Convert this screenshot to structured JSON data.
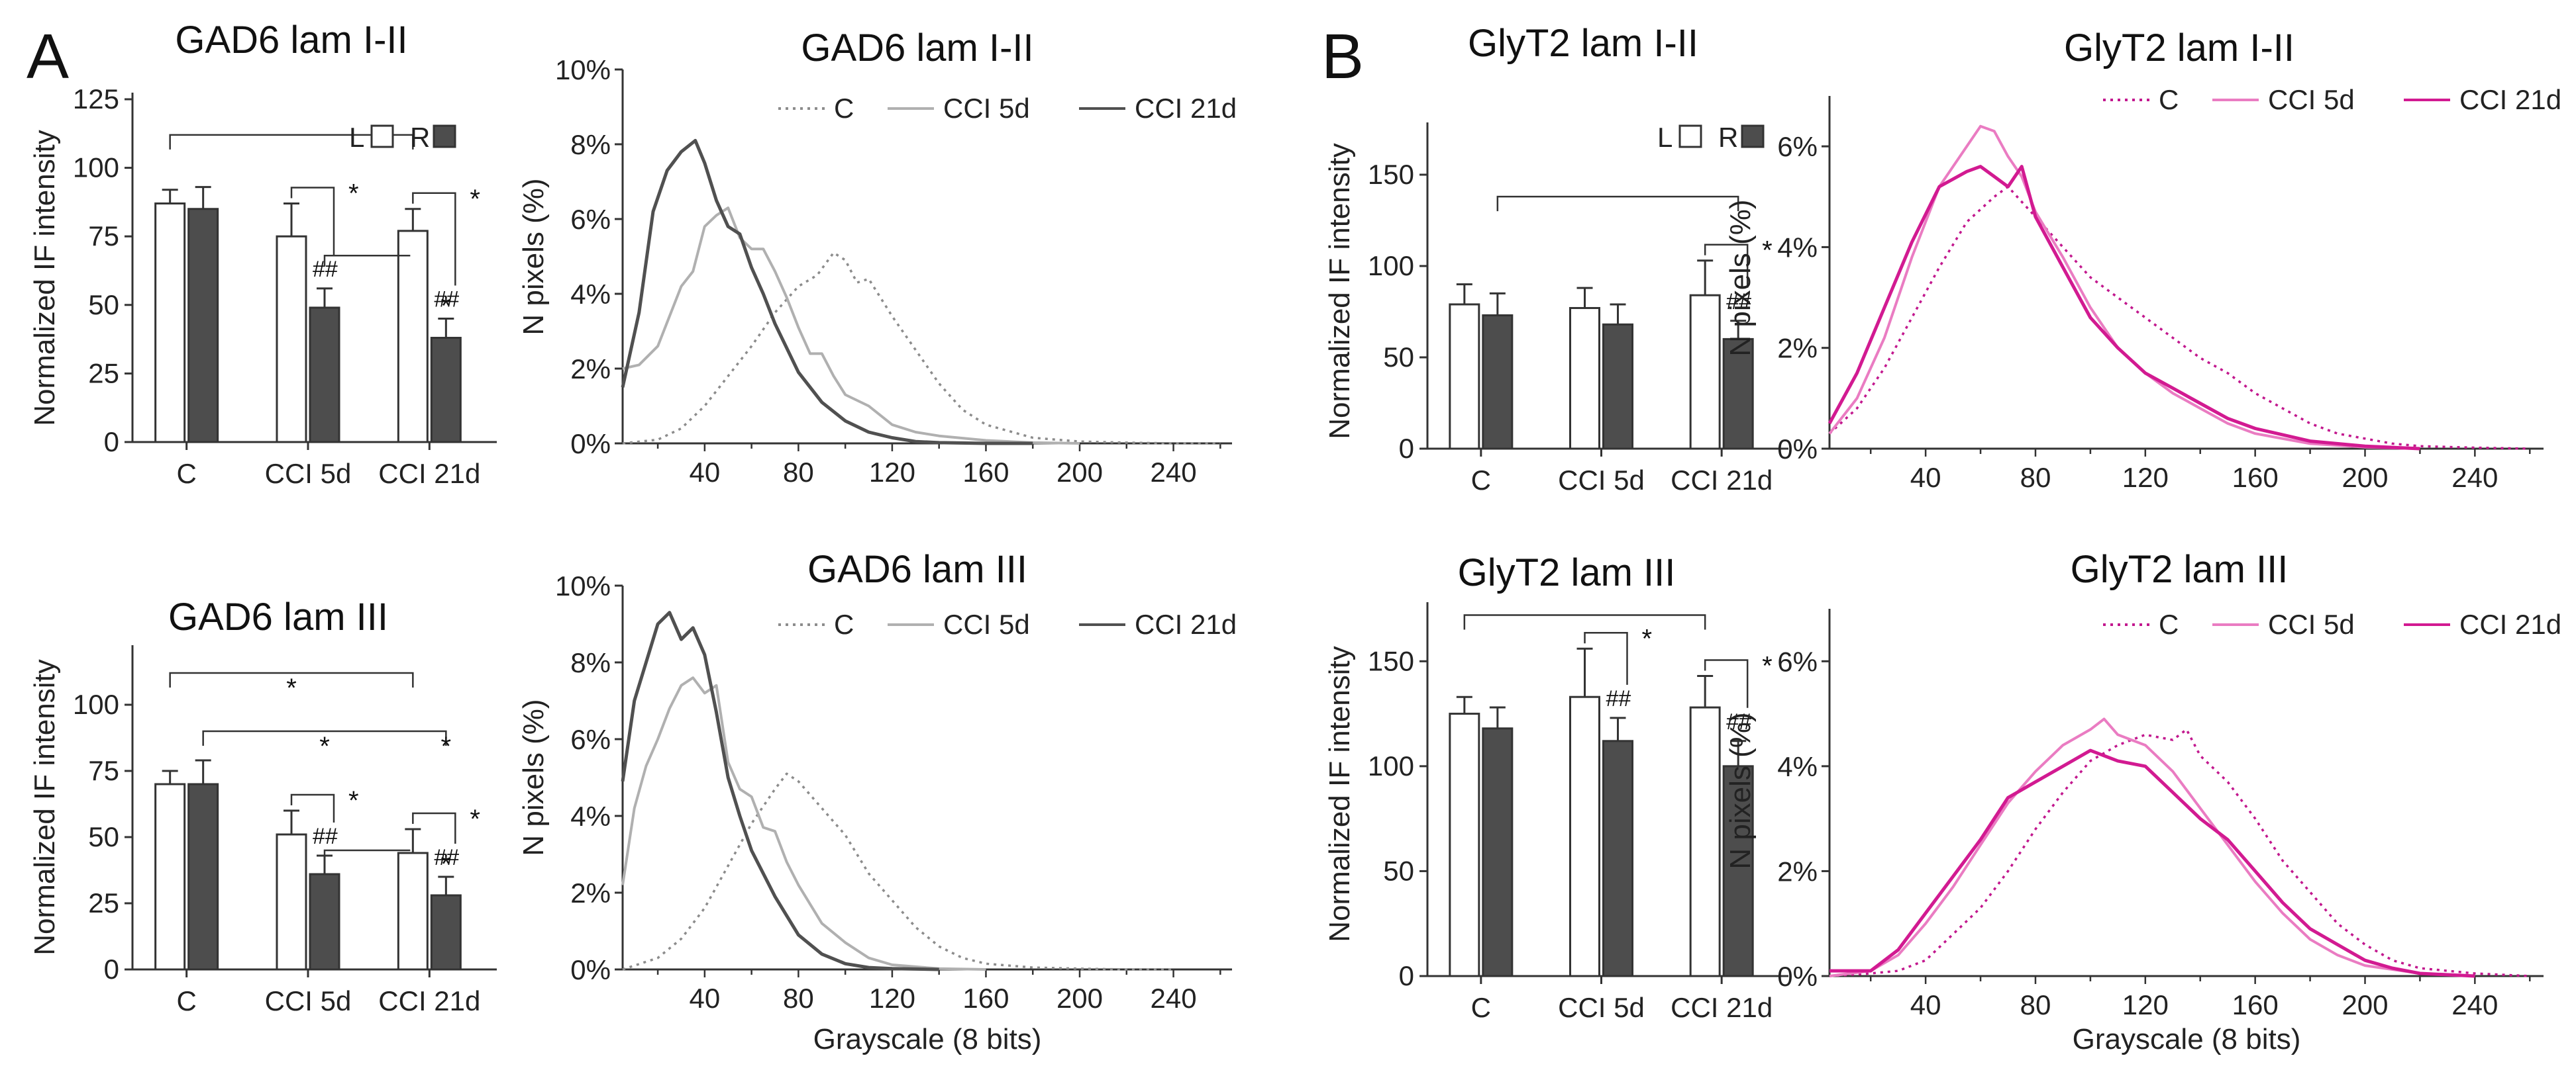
{
  "panel_labels": [
    "A",
    "B"
  ],
  "colors": {
    "bar_left": "#ffffff",
    "bar_right": "#4d4d4d",
    "gad_c": "#8c8c8c",
    "gad_5d": "#b0b0b0",
    "gad_21d": "#505050",
    "gly_c": "#c2188e",
    "gly_5d": "#ea7cc2",
    "gly_21d": "#d21a91"
  },
  "chart_data": [
    {
      "id": "bar_gad_12",
      "type": "bar",
      "title": "GAD6 lam I-II",
      "ylabel": "Normalized IF intensity",
      "categories": [
        "C",
        "CCI 5d",
        "CCI 21d"
      ],
      "series": [
        {
          "name": "L",
          "values": [
            87,
            75,
            77
          ],
          "errors": [
            5,
            12,
            8
          ]
        },
        {
          "name": "R",
          "values": [
            85,
            49,
            38
          ],
          "errors": [
            8,
            7,
            7
          ]
        }
      ],
      "ylim": [
        0,
        125
      ],
      "yticks": [
        0,
        25,
        50,
        75,
        100,
        125
      ],
      "legend": [
        "L",
        "R"
      ],
      "sig": [
        {
          "type": "bracket",
          "from": "C",
          "to": "CCI 21d",
          "level": 112,
          "label": ""
        },
        {
          "type": "pair",
          "cat": "CCI 5d",
          "label": "*",
          "hash": "##"
        },
        {
          "type": "pair",
          "cat": "CCI 21d",
          "label": "*",
          "hash": "##"
        },
        {
          "type": "r_bracket",
          "from": "CCI 5d",
          "to": "CCI 21d",
          "level": 68,
          "label": ""
        },
        {
          "type": "r_star",
          "cat": "CCI 21d",
          "label": "*"
        }
      ]
    },
    {
      "id": "bar_gad_3",
      "type": "bar",
      "title": "GAD6 lam III",
      "ylabel": "Normalized IF intensity",
      "categories": [
        "C",
        "CCI 5d",
        "CCI 21d"
      ],
      "series": [
        {
          "name": "L",
          "values": [
            70,
            51,
            44
          ],
          "errors": [
            5,
            9,
            9
          ]
        },
        {
          "name": "R",
          "values": [
            70,
            36,
            28
          ],
          "errors": [
            9,
            7,
            7
          ]
        }
      ],
      "ylim": [
        0,
        120
      ],
      "yticks": [
        0,
        25,
        50,
        75,
        100
      ],
      "sig": [
        {
          "type": "bracket",
          "from": "C",
          "to": "CCI 21d",
          "level": 112,
          "side": "L",
          "label": "*"
        },
        {
          "type": "bracket",
          "from": "C",
          "to": "CCI 21d",
          "level": 90,
          "side": "R",
          "label": "*",
          "label2": "*"
        },
        {
          "type": "pair",
          "cat": "CCI 5d",
          "label": "*",
          "hash": "##"
        },
        {
          "type": "pair",
          "cat": "CCI 21d",
          "label": "*",
          "hash": "##"
        },
        {
          "type": "r_bracket",
          "from": "CCI 5d",
          "to": "CCI 21d",
          "level": 45,
          "label": ""
        },
        {
          "type": "r_star",
          "cat": "CCI 21d",
          "label": "*"
        }
      ]
    },
    {
      "id": "bar_gly_12",
      "type": "bar",
      "title": "GlyT2 lam I-II",
      "ylabel": "Normalized IF intensity",
      "categories": [
        "C",
        "CCI 5d",
        "CCI 21d"
      ],
      "series": [
        {
          "name": "L",
          "values": [
            79,
            77,
            84
          ],
          "errors": [
            11,
            11,
            19
          ]
        },
        {
          "name": "R",
          "values": [
            73,
            68,
            60
          ],
          "errors": [
            12,
            11,
            10
          ]
        }
      ],
      "ylim": [
        0,
        175
      ],
      "yticks": [
        0,
        50,
        100,
        150
      ],
      "legend": [
        "L",
        "R"
      ],
      "sig": [
        {
          "type": "bracket",
          "from": "C",
          "to": "CCI 21d",
          "level": 138,
          "side": "R",
          "label": ""
        },
        {
          "type": "pair",
          "cat": "CCI 21d",
          "label": "*",
          "hash": "##"
        }
      ]
    },
    {
      "id": "bar_gly_3",
      "type": "bar",
      "title": "GlyT2 lam III",
      "ylabel": "Normalized IF intensity",
      "categories": [
        "C",
        "CCI 5d",
        "CCI 21d"
      ],
      "series": [
        {
          "name": "L",
          "values": [
            125,
            133,
            128
          ],
          "errors": [
            8,
            23,
            15
          ]
        },
        {
          "name": "R",
          "values": [
            118,
            112,
            100
          ],
          "errors": [
            10,
            11,
            12
          ]
        }
      ],
      "ylim": [
        0,
        175
      ],
      "yticks": [
        0,
        50,
        100,
        150
      ],
      "sig": [
        {
          "type": "bracket",
          "from": "C",
          "to": "CCI 21d",
          "level": 172,
          "label": ""
        },
        {
          "type": "pair",
          "cat": "CCI 5d",
          "label": "*",
          "hash": "##"
        },
        {
          "type": "pair",
          "cat": "CCI 21d",
          "label": "*",
          "hash": "##"
        }
      ]
    },
    {
      "id": "hist_gad_12",
      "type": "line",
      "title": "GAD6 lam I-II",
      "ylabel": "N pixels (%)",
      "xlabel": "",
      "xlim": [
        5,
        265
      ],
      "xticks": [
        40,
        80,
        120,
        160,
        200,
        240
      ],
      "ylim": [
        0,
        10
      ],
      "yticks": [
        0,
        2,
        4,
        6,
        8,
        10
      ],
      "ytick_labels": [
        "0%",
        "2%",
        "4%",
        "6%",
        "8%",
        "10%"
      ],
      "series": [
        {
          "name": "C",
          "style": "dotted",
          "x": [
            5,
            20,
            30,
            40,
            50,
            60,
            70,
            80,
            88,
            95,
            100,
            105,
            110,
            120,
            130,
            140,
            150,
            160,
            180,
            200,
            220,
            240,
            260
          ],
          "y": [
            0,
            0.1,
            0.4,
            1.0,
            1.8,
            2.6,
            3.5,
            4.2,
            4.5,
            5.1,
            4.9,
            4.3,
            4.4,
            3.4,
            2.5,
            1.6,
            0.9,
            0.5,
            0.15,
            0.05,
            0.02,
            0,
            0
          ]
        },
        {
          "name": "CCI 5d",
          "style": "solid",
          "x": [
            5,
            12,
            20,
            25,
            30,
            35,
            40,
            45,
            50,
            55,
            60,
            65,
            70,
            75,
            80,
            85,
            90,
            95,
            100,
            110,
            120,
            130,
            140,
            160,
            180,
            200
          ],
          "y": [
            2.0,
            2.1,
            2.6,
            3.4,
            4.2,
            4.6,
            5.8,
            6.1,
            6.3,
            5.5,
            5.2,
            5.2,
            4.6,
            3.9,
            3.1,
            2.4,
            2.4,
            1.8,
            1.3,
            1.0,
            0.5,
            0.3,
            0.2,
            0.08,
            0.02,
            0
          ]
        },
        {
          "name": "CCI 21d",
          "style": "solid",
          "x": [
            5,
            12,
            18,
            24,
            30,
            36,
            40,
            45,
            50,
            55,
            60,
            65,
            70,
            80,
            90,
            100,
            110,
            120,
            130,
            140,
            160,
            180
          ],
          "y": [
            1.5,
            3.5,
            6.2,
            7.3,
            7.8,
            8.1,
            7.5,
            6.5,
            5.8,
            5.6,
            4.7,
            4.0,
            3.2,
            1.9,
            1.1,
            0.6,
            0.3,
            0.15,
            0.05,
            0.02,
            0,
            0
          ]
        }
      ]
    },
    {
      "id": "hist_gad_3",
      "type": "line",
      "title": "GAD6 lam III",
      "ylabel": "N pixels (%)",
      "xlabel": "Grayscale (8 bits)",
      "xlim": [
        5,
        265
      ],
      "xticks": [
        40,
        80,
        120,
        160,
        200,
        240
      ],
      "ylim": [
        0,
        10
      ],
      "yticks": [
        0,
        2,
        4,
        6,
        8,
        10
      ],
      "ytick_labels": [
        "0%",
        "2%",
        "4%",
        "6%",
        "8%",
        "10%"
      ],
      "series": [
        {
          "name": "C",
          "style": "dotted",
          "x": [
            5,
            20,
            30,
            40,
            50,
            60,
            70,
            75,
            80,
            90,
            100,
            110,
            120,
            130,
            140,
            150,
            160,
            180,
            200,
            220,
            240
          ],
          "y": [
            0,
            0.3,
            0.8,
            1.6,
            2.7,
            3.8,
            4.7,
            5.1,
            4.9,
            4.2,
            3.5,
            2.5,
            1.8,
            1.1,
            0.6,
            0.3,
            0.15,
            0.05,
            0.02,
            0,
            0
          ]
        },
        {
          "name": "CCI 5d",
          "style": "solid",
          "x": [
            5,
            10,
            15,
            20,
            25,
            30,
            35,
            40,
            45,
            50,
            55,
            60,
            65,
            70,
            75,
            80,
            90,
            100,
            110,
            120,
            140,
            160
          ],
          "y": [
            2.2,
            4.2,
            5.3,
            6.0,
            6.8,
            7.4,
            7.6,
            7.2,
            7.4,
            5.4,
            4.7,
            4.5,
            3.7,
            3.6,
            2.8,
            2.2,
            1.2,
            0.7,
            0.3,
            0.12,
            0.02,
            0
          ]
        },
        {
          "name": "CCI 21d",
          "style": "solid",
          "x": [
            5,
            10,
            15,
            20,
            25,
            30,
            35,
            40,
            45,
            50,
            55,
            60,
            70,
            80,
            90,
            100,
            110,
            120,
            140
          ],
          "y": [
            4.9,
            7.0,
            8.0,
            9.0,
            9.3,
            8.6,
            8.9,
            8.2,
            6.7,
            5.0,
            4.0,
            3.1,
            1.9,
            0.9,
            0.4,
            0.15,
            0.05,
            0.02,
            0
          ]
        }
      ]
    },
    {
      "id": "hist_gly_12",
      "type": "line",
      "title": "GlyT2 lam I-II",
      "ylabel": "N pixels (%)",
      "xlabel": "",
      "xlim": [
        5,
        265
      ],
      "xticks": [
        40,
        80,
        120,
        160,
        200,
        240
      ],
      "ylim": [
        0,
        7
      ],
      "yticks": [
        0,
        2,
        4,
        6
      ],
      "ytick_labels": [
        "0%",
        "2%",
        "4%",
        "6%"
      ],
      "series": [
        {
          "name": "C",
          "style": "dotted",
          "x": [
            5,
            15,
            25,
            35,
            45,
            55,
            65,
            70,
            75,
            80,
            90,
            100,
            110,
            120,
            130,
            140,
            150,
            160,
            170,
            180,
            190,
            200,
            210,
            220,
            240,
            260
          ],
          "y": [
            0.3,
            0.8,
            1.6,
            2.6,
            3.6,
            4.5,
            5.0,
            5.2,
            4.9,
            4.6,
            4.0,
            3.4,
            3.0,
            2.6,
            2.2,
            1.8,
            1.5,
            1.1,
            0.8,
            0.5,
            0.3,
            0.2,
            0.1,
            0.05,
            0.02,
            0
          ]
        },
        {
          "name": "CCI 5d",
          "style": "solid",
          "x": [
            5,
            15,
            25,
            35,
            45,
            55,
            60,
            65,
            70,
            75,
            80,
            90,
            100,
            110,
            120,
            130,
            140,
            150,
            160,
            180,
            200,
            220
          ],
          "y": [
            0.3,
            1.0,
            2.2,
            3.8,
            5.2,
            6.0,
            6.4,
            6.3,
            5.8,
            5.4,
            4.7,
            3.8,
            2.8,
            2.0,
            1.5,
            1.1,
            0.8,
            0.5,
            0.3,
            0.1,
            0.03,
            0
          ]
        },
        {
          "name": "CCI 21d",
          "style": "solid",
          "x": [
            5,
            15,
            25,
            35,
            45,
            55,
            60,
            65,
            70,
            75,
            80,
            90,
            100,
            110,
            120,
            130,
            140,
            150,
            160,
            180,
            200,
            220
          ],
          "y": [
            0.5,
            1.5,
            2.8,
            4.1,
            5.2,
            5.5,
            5.6,
            5.4,
            5.2,
            5.6,
            4.6,
            3.6,
            2.6,
            2.0,
            1.5,
            1.2,
            0.9,
            0.6,
            0.4,
            0.15,
            0.05,
            0
          ]
        }
      ]
    },
    {
      "id": "hist_gly_3",
      "type": "line",
      "title": "GlyT2 lam III",
      "ylabel": "N pixels (%)",
      "xlabel": "Grayscale (8 bits)",
      "xlim": [
        5,
        265
      ],
      "xticks": [
        40,
        80,
        120,
        160,
        200,
        240
      ],
      "ylim": [
        0,
        7
      ],
      "yticks": [
        0,
        2,
        4,
        6
      ],
      "ytick_labels": [
        "0%",
        "2%",
        "4%",
        "6%"
      ],
      "series": [
        {
          "name": "C",
          "style": "dotted",
          "x": [
            5,
            20,
            30,
            40,
            50,
            60,
            70,
            80,
            90,
            100,
            110,
            120,
            130,
            135,
            140,
            150,
            160,
            170,
            180,
            190,
            200,
            210,
            220,
            240,
            260
          ],
          "y": [
            0,
            0.05,
            0.1,
            0.3,
            0.8,
            1.3,
            2.0,
            2.8,
            3.5,
            4.1,
            4.4,
            4.6,
            4.5,
            4.7,
            4.2,
            3.7,
            3.0,
            2.2,
            1.6,
            1.0,
            0.6,
            0.3,
            0.15,
            0.05,
            0
          ]
        },
        {
          "name": "CCI 5d",
          "style": "solid",
          "x": [
            5,
            20,
            30,
            40,
            50,
            60,
            70,
            80,
            90,
            100,
            105,
            110,
            120,
            130,
            140,
            150,
            160,
            170,
            180,
            190,
            200,
            220,
            240
          ],
          "y": [
            0,
            0.1,
            0.4,
            1.0,
            1.7,
            2.5,
            3.3,
            3.9,
            4.4,
            4.7,
            4.9,
            4.6,
            4.4,
            3.9,
            3.2,
            2.5,
            1.8,
            1.2,
            0.7,
            0.4,
            0.2,
            0.05,
            0
          ]
        },
        {
          "name": "CCI 21d",
          "style": "solid",
          "x": [
            5,
            20,
            30,
            40,
            50,
            60,
            70,
            80,
            90,
            100,
            110,
            120,
            130,
            140,
            150,
            160,
            170,
            180,
            190,
            200,
            210,
            220,
            240
          ],
          "y": [
            0.1,
            0.1,
            0.5,
            1.2,
            1.9,
            2.6,
            3.4,
            3.7,
            4.0,
            4.3,
            4.1,
            4.0,
            3.5,
            3.0,
            2.6,
            2.0,
            1.4,
            0.9,
            0.6,
            0.3,
            0.15,
            0.05,
            0
          ]
        }
      ]
    }
  ]
}
